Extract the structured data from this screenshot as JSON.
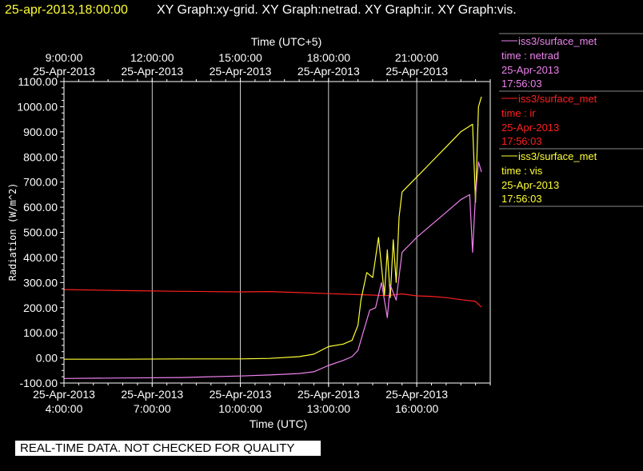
{
  "header": {
    "timestamp": "25-apr-2013,18:00:00",
    "titles": "XY Graph:xy-grid.  XY Graph:netrad.  XY Graph:ir.  XY Graph:vis."
  },
  "disclaimer": "REAL-TIME DATA. NOT CHECKED FOR QUALITY",
  "colors": {
    "netrad": "#ee82ee",
    "ir": "#ff2020",
    "vis": "#ffff33",
    "axis": "#ffffff",
    "grid": "#ffffff",
    "background": "#000000"
  },
  "legend": [
    {
      "source": "iss3/surface_met",
      "desc": "time : netrad",
      "date": "25-Apr-2013",
      "time": "17:56:03"
    },
    {
      "source": "iss3/surface_met",
      "desc": "time : ir",
      "date": "25-Apr-2013",
      "time": "17:56:03"
    },
    {
      "source": "iss3/surface_met",
      "desc": "time : vis",
      "date": "25-Apr-2013",
      "time": "17:56:03"
    }
  ],
  "chart_data": {
    "type": "line",
    "ylabel": "Radiation (W/m^2)",
    "xlabel": "Time (UTC)",
    "x2label": "Time (UTC+5)",
    "ylim": [
      -100,
      1100
    ],
    "xlim_hours_utc": [
      4,
      18.5
    ],
    "yticks": [
      "-100.00",
      "0.00",
      "100.00",
      "200.00",
      "300.00",
      "400.00",
      "500.00",
      "600.00",
      "700.00",
      "800.00",
      "900.00",
      "1000.00",
      "1100.00"
    ],
    "xticks_utc": [
      {
        "hour": 4,
        "date": "25-Apr-2013",
        "time": "4:00:00"
      },
      {
        "hour": 7,
        "date": "25-Apr-2013",
        "time": "7:00:00"
      },
      {
        "hour": 10,
        "date": "25-Apr-2013",
        "time": "10:00:00"
      },
      {
        "hour": 13,
        "date": "25-Apr-2013",
        "time": "13:00:00"
      },
      {
        "hour": 16,
        "date": "25-Apr-2013",
        "time": "16:00:00"
      }
    ],
    "xticks_local": [
      {
        "hour": 4,
        "date": "25-Apr-2013",
        "time": "9:00:00"
      },
      {
        "hour": 7,
        "date": "25-Apr-2013",
        "time": "12:00:00"
      },
      {
        "hour": 10,
        "date": "25-Apr-2013",
        "time": "15:00:00"
      },
      {
        "hour": 13,
        "date": "25-Apr-2013",
        "time": "18:00:00"
      },
      {
        "hour": 16,
        "date": "25-Apr-2013",
        "time": "21:00:00"
      }
    ],
    "grid": true,
    "series": [
      {
        "key": "ir",
        "x": [
          4.0,
          6.0,
          8.0,
          10.0,
          11.0,
          12.0,
          13.0,
          14.0,
          15.0,
          15.5,
          16.0,
          16.5,
          17.0,
          17.5,
          18.0,
          18.2
        ],
        "y": [
          272,
          268,
          265,
          263,
          264,
          260,
          256,
          252,
          248,
          255,
          247,
          245,
          240,
          232,
          225,
          202
        ]
      },
      {
        "key": "vis",
        "x": [
          4.0,
          6.0,
          8.0,
          10.0,
          11.0,
          12.0,
          12.5,
          13.0,
          13.5,
          13.8,
          14.0,
          14.1,
          14.3,
          14.5,
          14.7,
          14.9,
          15.0,
          15.1,
          15.2,
          15.3,
          15.4,
          15.5,
          16.0,
          16.5,
          17.0,
          17.5,
          17.9,
          18.0,
          18.1,
          18.2
        ],
        "y": [
          -5,
          -5,
          -4,
          -4,
          -2,
          5,
          15,
          45,
          55,
          70,
          130,
          230,
          340,
          320,
          480,
          250,
          430,
          240,
          470,
          300,
          560,
          660,
          720,
          780,
          840,
          900,
          930,
          620,
          1000,
          1040
        ]
      },
      {
        "key": "netrad",
        "x": [
          4.0,
          6.0,
          8.0,
          10.0,
          11.0,
          12.0,
          12.5,
          13.0,
          13.5,
          13.8,
          14.0,
          14.2,
          14.4,
          14.6,
          14.8,
          15.0,
          15.1,
          15.3,
          15.5,
          16.0,
          16.5,
          17.0,
          17.5,
          17.8,
          17.9,
          18.0,
          18.1,
          18.2
        ],
        "y": [
          -82,
          -80,
          -78,
          -72,
          -68,
          -62,
          -55,
          -30,
          -10,
          5,
          30,
          110,
          190,
          200,
          300,
          160,
          290,
          230,
          420,
          480,
          530,
          580,
          630,
          650,
          420,
          650,
          780,
          740
        ]
      }
    ]
  }
}
